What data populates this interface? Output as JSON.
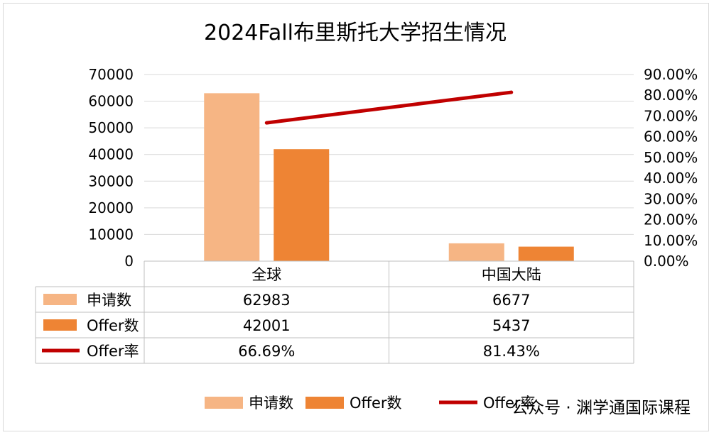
{
  "chart_data": {
    "type": "bar",
    "title": "2024Fall布里斯托大学招生情况",
    "categories": [
      "全球",
      "中国大陆"
    ],
    "series": [
      {
        "name": "申请数",
        "kind": "bar",
        "axis": "left",
        "color": "#f6b584",
        "values": [
          62983,
          6677
        ]
      },
      {
        "name": "Offer数",
        "kind": "bar",
        "axis": "left",
        "color": "#ee8434",
        "values": [
          42001,
          5437
        ]
      },
      {
        "name": "Offer率",
        "kind": "line",
        "axis": "right",
        "color": "#c00000",
        "values": [
          66.69,
          81.43
        ]
      }
    ],
    "table_values": [
      [
        "62983",
        "6677"
      ],
      [
        "42001",
        "5437"
      ],
      [
        "66.69%",
        "81.43%"
      ]
    ],
    "left_axis": {
      "ylim": [
        0,
        70000
      ],
      "ticks": [
        "0",
        "10000",
        "20000",
        "30000",
        "40000",
        "50000",
        "60000",
        "70000"
      ]
    },
    "right_axis": {
      "ylim": [
        0,
        90
      ],
      "ticks": [
        "0.00%",
        "10.00%",
        "20.00%",
        "30.00%",
        "40.00%",
        "50.00%",
        "60.00%",
        "70.00%",
        "80.00%",
        "90.00%"
      ]
    },
    "grid": true,
    "legend_position": "bottom",
    "watermark": "公众号 · 渊学通国际课程"
  }
}
